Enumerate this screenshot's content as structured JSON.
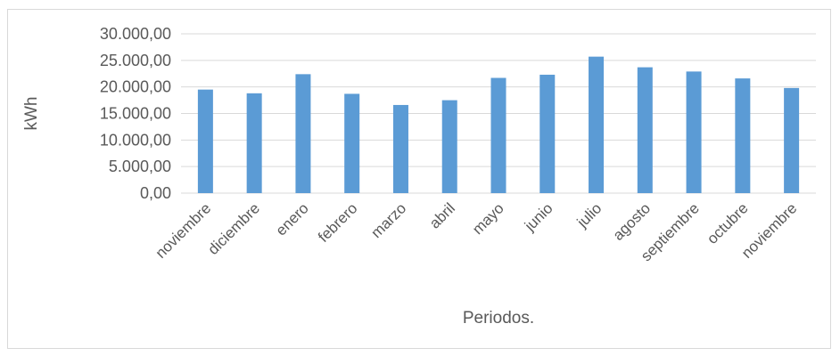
{
  "chart_data": {
    "type": "bar",
    "categories": [
      "noviembre",
      "diciembre",
      "enero",
      "febrero",
      "marzo",
      "abril",
      "mayo",
      "junio",
      "julio",
      "agosto",
      "septiembre",
      "octubre",
      "noviembre"
    ],
    "values": [
      19500,
      18800,
      22400,
      18700,
      16600,
      17500,
      21700,
      22300,
      25700,
      23700,
      22900,
      21600,
      19800
    ],
    "ylim": [
      0,
      30000
    ],
    "yticks": [
      0,
      5000,
      10000,
      15000,
      20000,
      25000,
      30000
    ],
    "ytick_labels": [
      "0,00",
      "5.000,00",
      "10.000,00",
      "15.000,00",
      "20.000,00",
      "25.000,00",
      "30.000,00"
    ],
    "xlabel": "Periodos.",
    "ylabel": "kWh",
    "grid": true,
    "bar_color": "#5b9bd5",
    "grid_color": "#d9d9d9"
  }
}
